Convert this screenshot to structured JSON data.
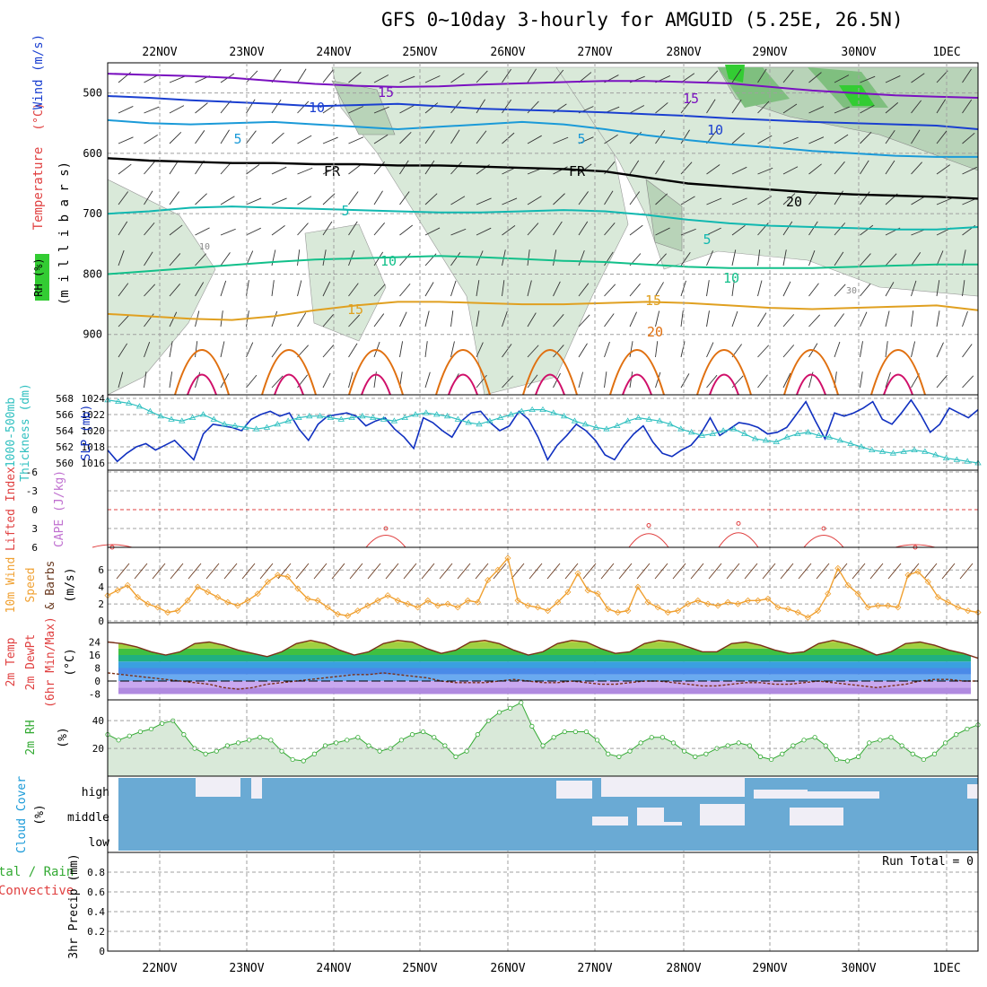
{
  "title": "GFS 0~10day 3-hourly for AMGUID (5.25E, 26.5N)",
  "dates": [
    "22NOV",
    "23NOV",
    "24NOV",
    "25NOV",
    "26NOV",
    "27NOV",
    "28NOV",
    "29NOV",
    "30NOV",
    "1DEC"
  ],
  "colors": {
    "grid": "#a0a0a0",
    "rh_light": "#d9e9d9",
    "rh_mid": "#b8d3b8",
    "rh_dark": "#7fbf7f",
    "rh_bright": "#33cc33",
    "t_m15": "#7a10c0",
    "t_m10": "#1a3fd0",
    "t_m5": "#1a9ad8",
    "t_fr": "#000000",
    "t_p5": "#10b8b0",
    "t_p10": "#12c08a",
    "t_p15": "#e0a020",
    "t_p20": "#e07010",
    "t_p25": "#d0106a",
    "slp": "#1030c0",
    "thick": "#30c0c0",
    "li": "#e04040",
    "wind": "#f0a030",
    "temp_line": "#7a3018",
    "dew_line": "#7a3018",
    "rh2m": "#33aa33",
    "cloud_bg": "#6aaad4",
    "cloud_fg": "#f0eef6"
  },
  "panel_labels": {
    "upper": {
      "rh": "RH (%)",
      "temperature": "Temperature",
      "temperature_unit": "(°C)",
      "wind": "Wind (m/s)",
      "pressure": "(m i l l i b a r s)"
    },
    "slp": {
      "thick": "1000-500mb",
      "thick2": "Thickness (dm)",
      "slp": "SLP (mb)"
    },
    "cape": {
      "li": "Lifted Index",
      "cape": "CAPE (J/kg)"
    },
    "wind10": {
      "l1": "10m Wind",
      "l2": "Speed",
      "l3": "& Barbs",
      "unit": "(m/s)"
    },
    "temp2m": {
      "l1": "2m Temp",
      "l2": "2m DewPt",
      "l3": "(6hr Min/Max)",
      "unit": "(°C)"
    },
    "rh2m": {
      "l1": "2m RH",
      "unit": "(%)"
    },
    "cloud": {
      "l1": "Cloud Cover",
      "unit": "(%)",
      "high": "high",
      "middle": "middle",
      "low": "low"
    },
    "precip": {
      "l1": "tal / Rain",
      "l2": "Convective",
      "l3": "3hr Precip (mm)",
      "run_total": "Run Total = 0"
    }
  },
  "chart_data": [
    {
      "type": "contour",
      "panel": "upper-air cross-section",
      "ylabel": "(millibars)",
      "y_ticks": [
        500,
        600,
        700,
        800,
        900
      ],
      "ylim": [
        1000,
        450
      ],
      "isotherm_labels": [
        "15",
        "10",
        "5",
        "FR",
        "5",
        "10",
        "15",
        "20",
        "15",
        "10",
        "5",
        "FR",
        "5",
        "10",
        "15",
        "20"
      ],
      "rh_labels": [
        "10",
        "30"
      ],
      "isotherms_degC": [
        {
          "level": -15,
          "label": "15",
          "p": [
            468,
            470,
            472,
            475,
            480,
            485,
            488,
            490,
            489,
            486,
            484,
            482,
            480,
            480,
            482,
            484,
            490,
            496,
            500,
            504,
            506,
            508
          ]
        },
        {
          "level": -10,
          "label": "10",
          "p": [
            505,
            508,
            512,
            515,
            518,
            522,
            520,
            518,
            522,
            526,
            528,
            530,
            532,
            535,
            538,
            542,
            545,
            548,
            550,
            552,
            554,
            560
          ]
        },
        {
          "level": -5,
          "label": "5",
          "p": [
            545,
            550,
            552,
            550,
            548,
            552,
            556,
            560,
            556,
            552,
            548,
            552,
            560,
            570,
            578,
            585,
            590,
            596,
            600,
            604,
            606,
            606
          ]
        },
        {
          "level": 0,
          "label": "FR",
          "p": [
            608,
            612,
            614,
            616,
            616,
            618,
            618,
            620,
            620,
            622,
            624,
            626,
            630,
            640,
            650,
            655,
            660,
            665,
            668,
            670,
            672,
            675
          ]
        },
        {
          "level": 5,
          "label": "5",
          "p": [
            700,
            696,
            690,
            688,
            690,
            692,
            694,
            696,
            698,
            698,
            696,
            694,
            696,
            702,
            710,
            716,
            720,
            722,
            724,
            726,
            726,
            722
          ]
        },
        {
          "level": 10,
          "label": "10",
          "p": [
            800,
            795,
            790,
            785,
            780,
            776,
            774,
            772,
            770,
            772,
            775,
            778,
            780,
            784,
            788,
            790,
            790,
            790,
            788,
            786,
            784,
            784
          ]
        },
        {
          "level": 15,
          "label": "15",
          "p": [
            866,
            870,
            874,
            876,
            870,
            860,
            852,
            846,
            846,
            848,
            850,
            850,
            848,
            846,
            848,
            852,
            856,
            858,
            856,
            854,
            852,
            860
          ]
        }
      ]
    },
    {
      "type": "line",
      "panel": "slp-thickness",
      "y_ticks_slp": [
        1016,
        1018,
        1020,
        1022,
        1024
      ],
      "y_ticks_thick": [
        560,
        562,
        564,
        566,
        568
      ],
      "series": [
        {
          "name": "SLP (mb)",
          "values": [
            1017.6,
            1016.2,
            1017.2,
            1018.0,
            1018.4,
            1017.6,
            1018.2,
            1018.8,
            1017.6,
            1016.4,
            1019.6,
            1020.8,
            1020.6,
            1020.4,
            1020.0,
            1021.4,
            1022.0,
            1022.4,
            1021.8,
            1022.2,
            1020.2,
            1018.8,
            1020.8,
            1021.8,
            1022.0,
            1022.2,
            1021.8,
            1020.6,
            1021.2,
            1021.6,
            1020.2,
            1019.2,
            1017.8,
            1021.6,
            1021.0,
            1020.0,
            1019.2,
            1021.2,
            1022.2,
            1022.4,
            1021.0,
            1020.0,
            1020.6,
            1022.4,
            1021.4,
            1019.2,
            1016.4,
            1018.2,
            1019.4,
            1020.8,
            1020.0,
            1018.8,
            1017.0,
            1016.4,
            1018.2,
            1019.6,
            1020.6,
            1018.6,
            1017.2,
            1016.8,
            1017.6,
            1018.2,
            1019.6,
            1021.6,
            1019.4,
            1020.2,
            1021.0,
            1020.8,
            1020.4,
            1019.6,
            1019.8,
            1020.4,
            1022.0,
            1023.6,
            1021.2,
            1019.0,
            1022.2,
            1021.8,
            1022.2,
            1022.8,
            1023.6,
            1021.4,
            1020.8,
            1022.2,
            1023.8,
            1022.0,
            1019.8,
            1020.8,
            1022.8,
            1022.2,
            1021.6,
            1022.6
          ]
        },
        {
          "name": "1000-500mb Thickness (dm)",
          "values": [
            567.8,
            567.6,
            567.4,
            567.0,
            566.4,
            565.8,
            565.4,
            565.2,
            565.6,
            566.0,
            565.4,
            564.8,
            564.6,
            564.4,
            564.2,
            564.4,
            564.8,
            565.2,
            565.6,
            565.8,
            565.8,
            565.6,
            565.4,
            565.6,
            565.8,
            565.6,
            565.4,
            565.2,
            565.6,
            566.0,
            566.2,
            566.0,
            565.8,
            565.4,
            565.0,
            564.8,
            565.2,
            565.6,
            566.0,
            566.4,
            566.6,
            566.6,
            566.2,
            565.8,
            565.2,
            564.8,
            564.4,
            564.2,
            564.6,
            565.2,
            565.6,
            565.4,
            565.2,
            564.8,
            564.2,
            563.8,
            563.4,
            563.6,
            564.0,
            564.2,
            563.6,
            563.0,
            562.8,
            562.6,
            563.2,
            563.6,
            563.8,
            563.4,
            563.2,
            562.8,
            562.4,
            562.0,
            561.6,
            561.4,
            561.2,
            561.4,
            561.6,
            561.4,
            561.0,
            560.6,
            560.4,
            560.2,
            560.0
          ]
        }
      ]
    },
    {
      "type": "line",
      "panel": "lifted-index-cape",
      "y_ticks": [
        -6,
        -3,
        0,
        3,
        6
      ],
      "series": [
        {
          "name": "Lifted Index",
          "values": [
            5.5,
            5.8,
            6,
            6,
            6,
            6,
            6,
            6,
            6,
            6,
            6,
            6,
            6,
            6,
            6,
            6,
            6,
            6,
            6,
            6,
            6,
            6,
            6,
            6,
            6,
            6,
            6,
            6,
            6,
            6,
            6,
            6,
            6,
            6,
            6,
            6,
            6,
            6,
            6,
            6,
            6,
            6,
            6,
            6,
            6,
            6,
            6,
            6,
            6,
            6,
            6,
            6,
            6,
            6,
            6,
            6,
            6,
            6,
            6,
            6,
            6,
            6,
            6,
            6,
            6,
            6,
            6,
            6,
            6,
            6,
            6,
            6,
            6,
            6,
            6,
            6,
            6,
            6,
            6,
            6,
            6,
            6
          ]
        }
      ]
    },
    {
      "type": "line",
      "panel": "10m-wind",
      "y_ticks": [
        0,
        2,
        4,
        6
      ],
      "series": [
        {
          "name": "10m Wind Speed (m/s)",
          "values": [
            3.0,
            3.6,
            4.2,
            2.8,
            2.0,
            1.6,
            1.0,
            1.2,
            2.4,
            4.0,
            3.4,
            2.8,
            2.2,
            1.8,
            2.4,
            3.2,
            4.6,
            5.4,
            5.2,
            3.8,
            2.6,
            2.4,
            1.6,
            0.8,
            0.6,
            1.2,
            1.8,
            2.4,
            3.0,
            2.4,
            2.0,
            1.6,
            2.4,
            1.8,
            2.0,
            1.6,
            2.4,
            2.2,
            4.8,
            6.0,
            7.4,
            2.4,
            1.8,
            1.6,
            1.2,
            2.2,
            3.4,
            5.6,
            3.6,
            3.2,
            1.4,
            1.0,
            1.2,
            4.0,
            2.2,
            1.6,
            1.0,
            1.2,
            2.0,
            2.4,
            2.0,
            1.8,
            2.2,
            2.0,
            2.4,
            2.4,
            2.6,
            1.6,
            1.4,
            1.0,
            0.4,
            1.2,
            3.2,
            6.2,
            4.2,
            3.2,
            1.6,
            1.8,
            1.8,
            1.6,
            5.4,
            5.8,
            4.6,
            2.8,
            2.2,
            1.6,
            1.2,
            1.0
          ]
        }
      ]
    },
    {
      "type": "area",
      "panel": "2m-temperature",
      "y_ticks": [
        -8,
        0,
        8,
        16,
        24
      ],
      "series": [
        {
          "name": "2m Temp",
          "values": [
            24,
            23,
            21,
            18,
            16,
            18,
            23,
            24,
            22,
            19,
            17,
            15,
            18,
            23,
            25,
            23,
            19,
            16,
            18,
            23,
            25,
            24,
            20,
            17,
            19,
            24,
            25,
            23,
            19,
            16,
            18,
            23,
            25,
            24,
            20,
            17,
            18,
            23,
            25,
            24,
            21,
            18,
            18,
            23,
            24,
            22,
            19,
            17,
            18,
            23,
            25,
            23,
            20,
            16,
            18,
            23,
            24,
            22,
            19,
            17,
            14
          ]
        },
        {
          "name": "2m DewPt",
          "values": [
            5,
            4,
            3,
            2,
            1,
            0,
            -1,
            -2,
            -4,
            -5,
            -4,
            -2,
            -1,
            0,
            1,
            2,
            3,
            4,
            4,
            5,
            4,
            3,
            2,
            0,
            -1,
            -1,
            -1,
            0,
            1,
            0,
            -1,
            -1,
            0,
            -1,
            -2,
            -2,
            -1,
            0,
            0,
            -1,
            -2,
            -3,
            -3,
            -2,
            -1,
            -1,
            -2,
            -2,
            -1,
            0,
            -1,
            -2,
            -3,
            -4,
            -3,
            -2,
            0,
            1,
            1,
            0,
            0
          ]
        }
      ]
    },
    {
      "type": "area",
      "panel": "2m-rh",
      "y_ticks": [
        20,
        40
      ],
      "series": [
        {
          "name": "2m RH (%)",
          "values": [
            30,
            26,
            29,
            32,
            34,
            38,
            40,
            30,
            20,
            16,
            18,
            22,
            24,
            26,
            28,
            26,
            18,
            12,
            11,
            16,
            22,
            24,
            26,
            28,
            22,
            18,
            20,
            26,
            30,
            32,
            28,
            22,
            14,
            18,
            30,
            40,
            46,
            49,
            53,
            36,
            22,
            28,
            32,
            32,
            32,
            26,
            16,
            14,
            18,
            24,
            28,
            28,
            24,
            18,
            14,
            16,
            20,
            22,
            24,
            22,
            14,
            12,
            16,
            22,
            26,
            28,
            22,
            12,
            11,
            14,
            24,
            26,
            28,
            22,
            16,
            12,
            16,
            24,
            30,
            34,
            37
          ]
        }
      ]
    },
    {
      "type": "heatmap",
      "panel": "cloud-cover",
      "categories": [
        "high",
        "middle",
        "low"
      ]
    },
    {
      "type": "bar",
      "panel": "3hr-precip",
      "y_ticks": [
        0,
        0.2,
        0.4,
        0.6,
        0.8
      ],
      "ylim": [
        0,
        1
      ],
      "values": []
    }
  ]
}
